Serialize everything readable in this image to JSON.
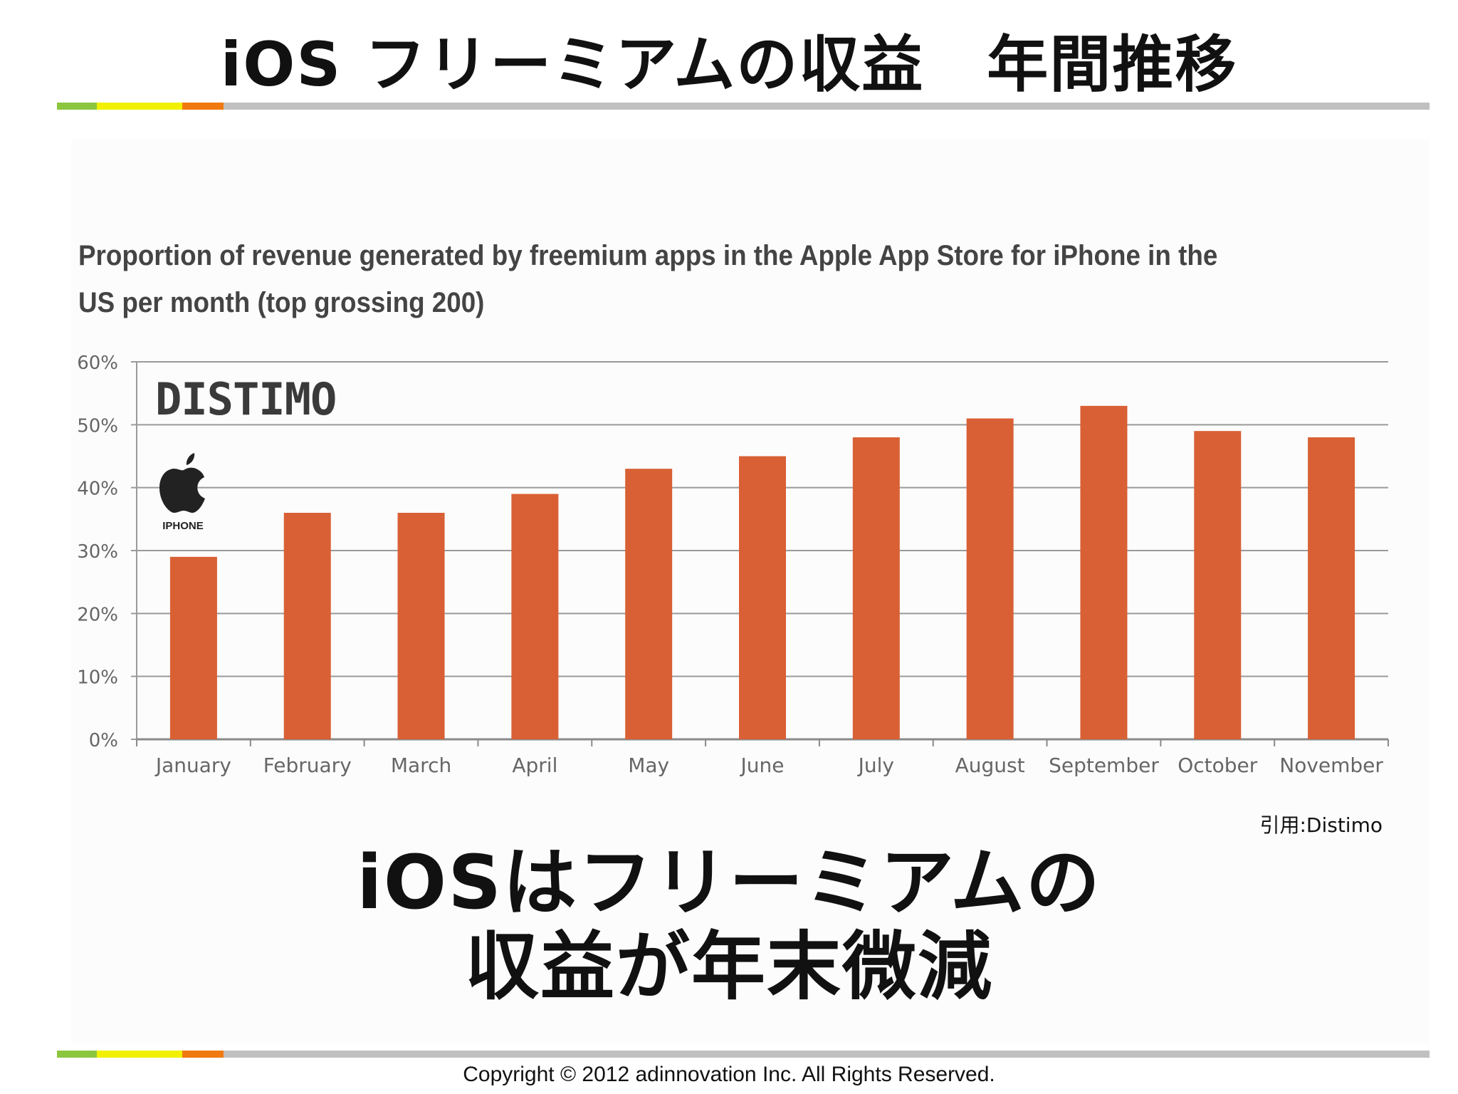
{
  "slide": {
    "title": "iOS フリーミアムの収益　年間推移",
    "conclusion_line1": "iOSはフリーミアムの",
    "conclusion_line2": "収益が年末微減",
    "source": "引用:Distimo",
    "copyright": "Copyright © 2012  adinnovation Inc. All Rights Reserved.",
    "accent_colors": [
      "#8cc63f",
      "#f0f000",
      "#f07a10",
      "#c0c0c0"
    ]
  },
  "logos": {
    "distimo": "DISTIMO",
    "apple_icon": "apple-icon",
    "iphone_label": "IPHONE"
  },
  "chart_data": {
    "type": "bar",
    "title": "Proportion of revenue generated by freemium apps in the Apple App Store for iPhone in the US per month (top grossing 200)",
    "xlabel": "",
    "ylabel": "",
    "categories": [
      "January",
      "February",
      "March",
      "April",
      "May",
      "June",
      "July",
      "August",
      "September",
      "October",
      "November"
    ],
    "values": [
      29,
      36,
      36,
      39,
      43,
      45,
      48,
      51,
      53,
      49,
      48
    ],
    "value_unit": "%",
    "ylim": [
      0,
      60
    ],
    "yticks": [
      "0%",
      "10%",
      "20%",
      "30%",
      "40%",
      "50%",
      "60%"
    ],
    "grid": true,
    "bar_color": "#d96035"
  }
}
